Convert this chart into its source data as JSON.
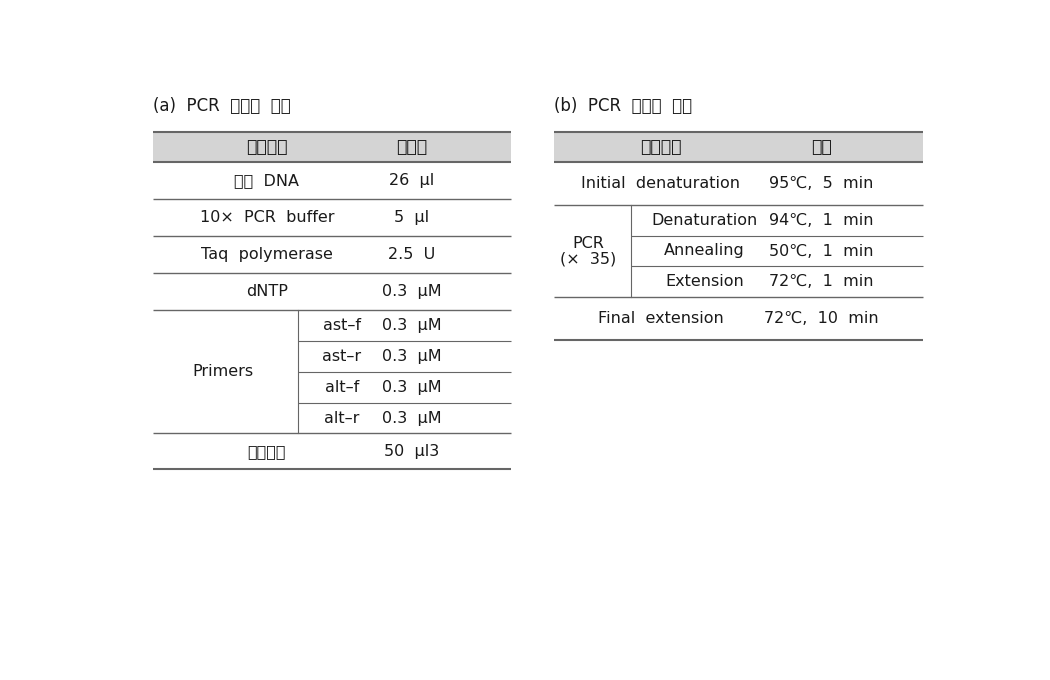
{
  "title_a": "(a)  PCR  반응액  조성",
  "title_b": "(b)  PCR  반응액  조건",
  "table_a_header_c1": "반응물질",
  "table_a_header_c2": "쳊가량",
  "table_b_header_c1": "반응단계",
  "table_b_header_c2": "조건",
  "bg_color": "#ffffff",
  "header_bg": "#d4d4d4",
  "line_color": "#666666",
  "text_color": "#1a1a1a",
  "font_size": 11.5,
  "header_font_size": 12.5
}
